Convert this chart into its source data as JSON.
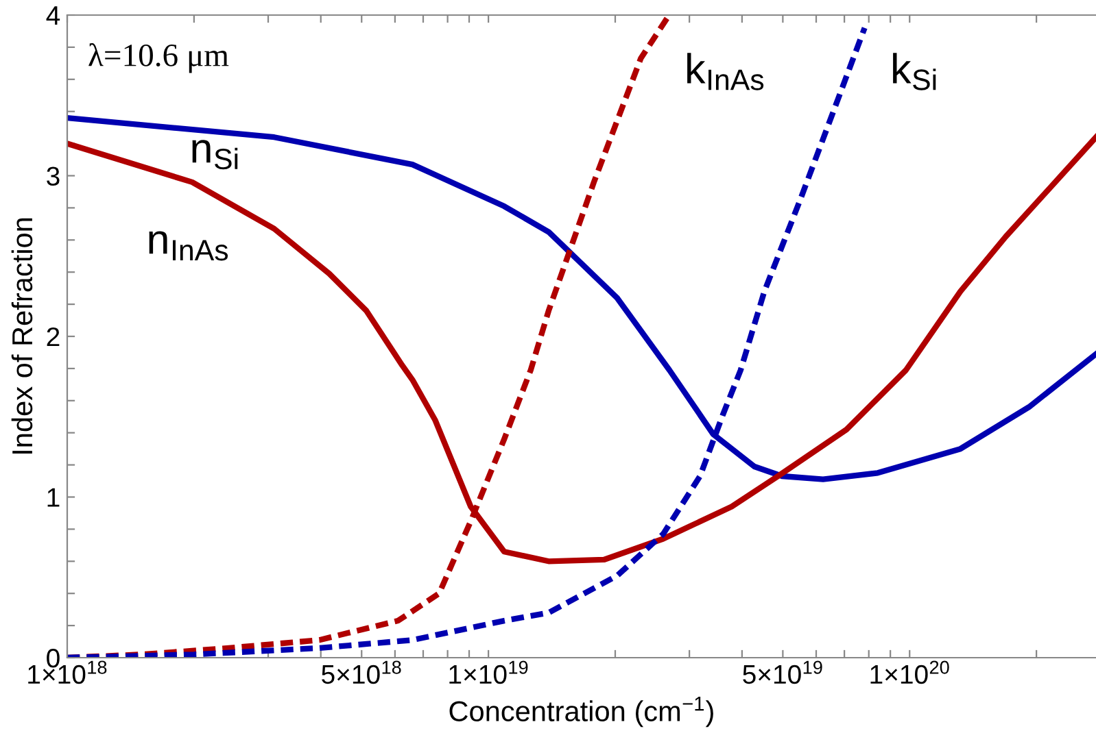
{
  "chart_data": {
    "type": "line",
    "xlabel": "Concentration (cm$^{−1}$)",
    "ylabel": "Index of Refraction",
    "annotations": [
      "λ=10.6 μm"
    ],
    "log": "x",
    "xlim": [
      1e+18,
      2.77e+20
    ],
    "ylim": [
      0,
      4
    ],
    "xticks": [
      {
        "value": 1e+18,
        "label": "1×10$^{18}$"
      },
      {
        "value": 2e+18,
        "label": null
      },
      {
        "value": 3e+18,
        "label": null
      },
      {
        "value": 4e+18,
        "label": null
      },
      {
        "value": 5e+18,
        "label": "5×10$^{18}$"
      },
      {
        "value": 6e+18,
        "label": null
      },
      {
        "value": 7e+18,
        "label": null
      },
      {
        "value": 8e+18,
        "label": null
      },
      {
        "value": 9e+18,
        "label": null
      },
      {
        "value": 1e+19,
        "label": "1×10$^{19}$"
      },
      {
        "value": 2e+19,
        "label": null
      },
      {
        "value": 3e+19,
        "label": null
      },
      {
        "value": 4e+19,
        "label": null
      },
      {
        "value": 5e+19,
        "label": "5×10$^{19}$"
      },
      {
        "value": 6e+19,
        "label": null
      },
      {
        "value": 7e+19,
        "label": null
      },
      {
        "value": 8e+19,
        "label": null
      },
      {
        "value": 9e+19,
        "label": null
      },
      {
        "value": 1e+20,
        "label": "1×10$^{20}$"
      },
      {
        "value": 2e+20,
        "label": null
      }
    ],
    "yticks": [
      0,
      {
        "value": 0.2,
        "label": null
      },
      {
        "value": 0.4,
        "label": null
      },
      {
        "value": 0.6,
        "label": null
      },
      {
        "value": 0.8,
        "label": null
      },
      1,
      {
        "value": 1.2,
        "label": null
      },
      {
        "value": 1.4,
        "label": null
      },
      {
        "value": 1.6,
        "label": null
      },
      {
        "value": 1.8,
        "label": null
      },
      2,
      {
        "value": 2.2,
        "label": null
      },
      {
        "value": 2.4,
        "label": null
      },
      {
        "value": 2.6,
        "label": null
      },
      {
        "value": 2.8,
        "label": null
      },
      3,
      {
        "value": 3.2,
        "label": null
      },
      {
        "value": 3.4,
        "label": null
      },
      {
        "value": 3.6,
        "label": null
      },
      {
        "value": 3.8,
        "label": null
      },
      4
    ],
    "grid": false,
    "legend": false,
    "series": [
      {
        "name": "n$_{Si}$",
        "color": "#0000b0",
        "line_style": "solid",
        "x": [
          1e+18,
          3.1e+18,
          6.6e+18,
          1.09e+19,
          1.39e+19,
          2.02e+19,
          2.69e+19,
          3.42e+19,
          4.28e+19,
          4.98e+19,
          6.23e+19,
          8.4e+19,
          1.32e+20,
          1.92e+20,
          2.77e+20
        ],
        "values": [
          3.36,
          3.24,
          3.07,
          2.81,
          2.65,
          2.24,
          1.79,
          1.39,
          1.19,
          1.13,
          1.11,
          1.15,
          1.3,
          1.56,
          1.89
        ]
      },
      {
        "name": "n$_{InAs}$",
        "color": "#b00000",
        "line_style": "solid",
        "x": [
          1e+18,
          1.98e+18,
          3.1e+18,
          4.19e+18,
          5.13e+18,
          6.24e+18,
          6.6e+18,
          7.47e+18,
          9.08e+18,
          1.09e+19,
          1.39e+19,
          1.88e+19,
          2.6e+19,
          3.78e+19,
          4.87e+19,
          7.08e+19,
          9.8e+19,
          1.32e+20,
          1.69e+20,
          2.77e+20
        ],
        "values": [
          3.2,
          2.96,
          2.67,
          2.39,
          2.16,
          1.82,
          1.73,
          1.48,
          0.94,
          0.66,
          0.6,
          0.61,
          0.74,
          0.94,
          1.13,
          1.42,
          1.79,
          2.28,
          2.62,
          3.24
        ]
      },
      {
        "name": "k$_{InAs}$",
        "color": "#b00000",
        "line_style": "dashed",
        "x": [
          1e+18,
          1.5e+18,
          2.42e+18,
          3.97e+18,
          6.1e+18,
          7.64e+18,
          9.08e+18,
          1.09e+19,
          1.26e+19,
          1.39e+19,
          1.78e+19,
          2.3e+19,
          2.67e+19
        ],
        "values": [
          0,
          0.02,
          0.06,
          0.11,
          0.23,
          0.4,
          0.85,
          1.36,
          1.79,
          2.16,
          2.96,
          3.73,
          3.99
        ]
      },
      {
        "name": "k$_{Si}$",
        "color": "#0000b0",
        "line_style": "dashed",
        "x": [
          1e+18,
          2e+18,
          3.97e+18,
          6.6e+18,
          1.09e+19,
          1.39e+19,
          2.02e+19,
          2.6e+19,
          3.18e+19,
          3.6e+19,
          3.97e+19,
          4.52e+19,
          5.48e+19,
          6.57e+19,
          7.82e+19
        ],
        "values": [
          0,
          0.02,
          0.06,
          0.11,
          0.23,
          0.28,
          0.51,
          0.77,
          1.13,
          1.51,
          1.79,
          2.28,
          2.84,
          3.39,
          3.92
        ]
      }
    ]
  }
}
